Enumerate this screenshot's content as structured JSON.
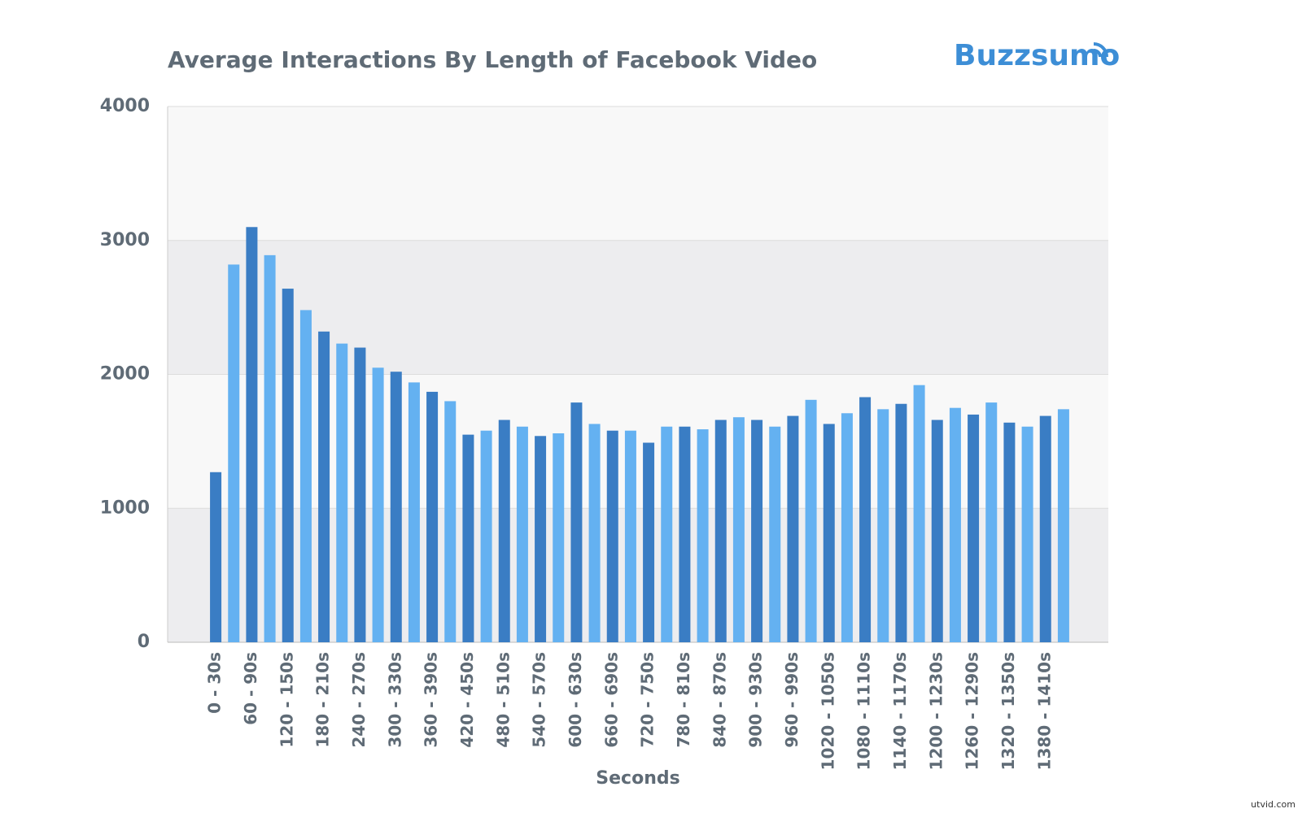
{
  "chart_data": {
    "type": "bar",
    "title": "Average Interactions By Length of Facebook Video",
    "brand": "Buzzsumo",
    "x_label": "Seconds",
    "watermark": "utvid.com",
    "categories": [
      "0 - 30s",
      null,
      "60 - 90s",
      null,
      "120 - 150s",
      null,
      "180 - 210s",
      null,
      "240 - 270s",
      null,
      "300 - 330s",
      null,
      "360 - 390s",
      null,
      "420 - 450s",
      null,
      "480 - 510s",
      null,
      "540 - 570s",
      null,
      "600 - 630s",
      null,
      "660 - 690s",
      null,
      "720 - 750s",
      null,
      "780 - 810s",
      null,
      "840 - 870s",
      null,
      "900 - 930s",
      null,
      "960 - 990s",
      null,
      "1020 - 1050s",
      null,
      "1080 - 1110s",
      null,
      "1140 - 1170s",
      null,
      "1200 - 1230s",
      null,
      "1260 - 1290s",
      null,
      "1320 - 1350s",
      null,
      "1380 - 1410s",
      null
    ],
    "values": [
      1270,
      2820,
      3100,
      2890,
      2640,
      2480,
      2320,
      2230,
      2200,
      2050,
      2020,
      1940,
      1870,
      1800,
      1550,
      1580,
      1660,
      1610,
      1540,
      1560,
      1790,
      1630,
      1580,
      1580,
      1490,
      1610,
      1610,
      1590,
      1660,
      1680,
      1660,
      1610,
      1690,
      1810,
      1630,
      1710,
      1830,
      1740,
      1780,
      1920,
      1660,
      1750,
      1700,
      1790,
      1640,
      1610,
      1690,
      1740
    ],
    "colors": [
      "#3a7dc4",
      "#64b1f1"
    ],
    "ylim": [
      0,
      4000
    ],
    "yticks": [
      0,
      1000,
      2000,
      3000,
      4000
    ],
    "grid": true
  }
}
